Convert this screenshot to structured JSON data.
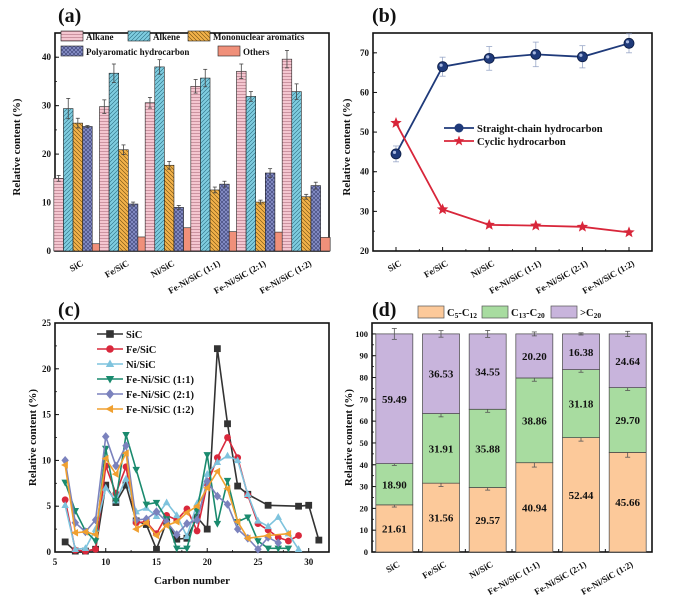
{
  "figure": {
    "panel_labels": [
      "(a)",
      "(b)",
      "(c)",
      "(d)"
    ]
  },
  "chart_data": [
    {
      "panel": "(a)",
      "type": "bar",
      "title": "",
      "xlabel": "",
      "ylabel": "Relative content (%)",
      "ylim": [
        0,
        45
      ],
      "yticks": [
        0,
        10,
        20,
        30,
        40
      ],
      "categories": [
        "SiC",
        "Fe/SiC",
        "Ni/SiC",
        "Fe-Ni/SiC (1:1)",
        "Fe-Ni/SiC (2:1)",
        "Fe-Ni/SiC (1:2)"
      ],
      "legend": "top",
      "series": [
        {
          "name": "Alkane",
          "color": "#f4c6d0",
          "pattern": "horizontal-lines",
          "values": [
            15.0,
            29.8,
            30.6,
            34.0,
            37.1,
            39.6
          ],
          "errors": [
            0.6,
            1.4,
            1.1,
            1.4,
            1.5,
            1.8
          ]
        },
        {
          "name": "Alkene",
          "color": "#7fcde0",
          "pattern": "diagonal-lines",
          "values": [
            29.4,
            36.7,
            38.0,
            35.7,
            31.9,
            32.9
          ],
          "errors": [
            2.1,
            1.9,
            1.5,
            1.8,
            1.0,
            1.6
          ]
        },
        {
          "name": "Mononuclear aromatics",
          "color": "#f3b24a",
          "pattern": "back-diagonal-lines",
          "values": [
            26.4,
            20.9,
            17.7,
            12.6,
            10.1,
            11.2
          ],
          "errors": [
            1.0,
            1.0,
            0.8,
            0.6,
            0.4,
            0.5
          ]
        },
        {
          "name": "Polyaromatic hydrocarbon",
          "color": "#8088c0",
          "pattern": "crosshatch",
          "values": [
            25.7,
            9.7,
            9.0,
            13.8,
            16.1,
            13.5
          ],
          "errors": [
            0.2,
            0.4,
            0.4,
            0.6,
            0.9,
            0.7
          ]
        },
        {
          "name": "Others",
          "color": "#f0907a",
          "pattern": "solid",
          "values": [
            1.5,
            2.9,
            4.8,
            4.0,
            3.9,
            2.8
          ],
          "errors": [
            0,
            0,
            0,
            0,
            0,
            0
          ]
        }
      ]
    },
    {
      "panel": "(b)",
      "type": "line",
      "title": "",
      "xlabel": "",
      "ylabel": "Relative content (%)",
      "ylim": [
        20,
        75
      ],
      "yticks": [
        20,
        30,
        40,
        50,
        60,
        70
      ],
      "categories": [
        "SiC",
        "Fe/SiC",
        "Ni/SiC",
        "Fe-Ni/SiC (1:1)",
        "Fe-Ni/SiC (2:1)",
        "Fe-Ni/SiC (1:2)"
      ],
      "legend": "center",
      "series": [
        {
          "name": "Straight-chain hydrocarbon",
          "color": "#1f3a7a",
          "marker": "circle",
          "values": [
            44.5,
            66.5,
            68.6,
            69.6,
            69.0,
            72.4
          ],
          "errors": [
            2.0,
            2.4,
            3.0,
            3.1,
            2.8,
            2.4
          ]
        },
        {
          "name": "Cyclic hydrocarbon",
          "color": "#d8263a",
          "marker": "star",
          "values": [
            52.3,
            30.5,
            26.6,
            26.4,
            26.1,
            24.7
          ],
          "errors": [
            0,
            0,
            0,
            0,
            0,
            0
          ]
        }
      ]
    },
    {
      "panel": "(c)",
      "type": "line",
      "title": "",
      "xlabel": "Carbon number",
      "ylabel": "Relative content (%)",
      "xlim": [
        5,
        32
      ],
      "ylim": [
        0,
        25
      ],
      "xticks": [
        5,
        10,
        15,
        20,
        25,
        30
      ],
      "yticks": [
        0,
        5,
        10,
        15,
        20,
        25
      ],
      "legend": "top-left",
      "series": [
        {
          "name": "SiC",
          "color": "#333333",
          "marker": "square",
          "x": [
            6,
            7,
            8,
            9,
            10,
            11,
            12,
            13,
            14,
            15,
            16,
            17,
            18,
            19,
            20,
            21,
            22,
            23,
            24,
            26,
            29,
            30,
            31
          ],
          "y": [
            1.1,
            0.1,
            0.1,
            0.3,
            7.3,
            5.4,
            7.3,
            3.4,
            3.0,
            0.3,
            3.3,
            1.4,
            1.5,
            3.8,
            2.5,
            22.2,
            14.0,
            7.2,
            6.3,
            5.1,
            5.0,
            5.1,
            1.3
          ]
        },
        {
          "name": "Fe/SiC",
          "color": "#d9283c",
          "marker": "circle",
          "x": [
            6,
            7,
            8,
            9,
            10,
            11,
            12,
            13,
            14,
            15,
            16,
            17,
            18,
            19,
            20,
            21,
            22,
            23,
            24,
            25,
            26,
            27,
            28,
            29
          ],
          "y": [
            5.7,
            0.2,
            0.1,
            0.3,
            9.4,
            6.4,
            9.3,
            3.2,
            3.3,
            2.0,
            4.0,
            3.5,
            4.7,
            2.3,
            7.4,
            10.3,
            12.5,
            10.3,
            6.2,
            3.1,
            2.4,
            1.6,
            1.2,
            1.8
          ]
        },
        {
          "name": "Ni/SiC",
          "color": "#7ec3dd",
          "marker": "triangle-up",
          "x": [
            6,
            7,
            8,
            9,
            10,
            11,
            12,
            13,
            14,
            15,
            16,
            17,
            18,
            19,
            20,
            21,
            22,
            23,
            24,
            25,
            26,
            27,
            28,
            29
          ],
          "y": [
            5.1,
            0.3,
            0.4,
            2.5,
            7.0,
            5.6,
            8.0,
            4.4,
            4.8,
            3.9,
            5.4,
            4.0,
            1.7,
            5.3,
            8.5,
            9.8,
            10.5,
            10.0,
            6.3,
            3.4,
            2.8,
            3.8,
            2.0,
            0.3
          ]
        },
        {
          "name": "Fe-Ni/SiC (1:1)",
          "color": "#1a8a6e",
          "marker": "triangle-down",
          "x": [
            6,
            7,
            8,
            9,
            10,
            11,
            12,
            13,
            14,
            15,
            16,
            17,
            18,
            19,
            20,
            21,
            22,
            23,
            24,
            25,
            26,
            27,
            28
          ],
          "y": [
            7.6,
            4.5,
            2.3,
            1.2,
            11.3,
            5.6,
            12.8,
            9.0,
            5.2,
            5.4,
            3.6,
            0.4,
            0.4,
            4.5,
            10.6,
            3.1,
            7.8,
            3.3,
            3.8,
            1.2,
            0.4,
            0.4,
            0.4
          ]
        },
        {
          "name": "Fe-Ni/SiC (2:1)",
          "color": "#7b82bd",
          "marker": "diamond",
          "x": [
            6,
            7,
            8,
            9,
            10,
            11,
            12,
            13,
            14,
            15,
            16,
            17,
            18,
            19,
            20,
            21,
            22,
            23,
            24,
            25,
            26,
            27
          ],
          "y": [
            10.0,
            3.2,
            2.2,
            3.5,
            12.6,
            9.4,
            11.6,
            3.5,
            3.6,
            4.4,
            3.3,
            1.9,
            3.1,
            3.5,
            7.7,
            6.1,
            5.2,
            2.5,
            1.5,
            0.3,
            1.6,
            1.0
          ]
        },
        {
          "name": "Fe-Ni/SiC (1:2)",
          "color": "#f0a030",
          "marker": "triangle-left",
          "x": [
            6,
            7,
            8,
            9,
            10,
            11,
            12,
            13,
            14,
            15,
            16,
            17,
            18,
            19,
            20,
            21,
            22,
            23,
            24,
            26,
            28
          ],
          "y": [
            9.5,
            2.1,
            2.2,
            1.9,
            10.2,
            8.5,
            10.8,
            2.5,
            3.2,
            1.8,
            2.9,
            3.3,
            4.3,
            5.0,
            7.0,
            8.8,
            6.9,
            3.3,
            1.5,
            1.8,
            2.0
          ]
        }
      ]
    },
    {
      "panel": "(d)",
      "type": "bar",
      "stacked": true,
      "title": "",
      "xlabel": "",
      "ylabel": "Relative content (%)",
      "ylim": [
        0,
        105
      ],
      "yticks": [
        0,
        10,
        20,
        30,
        40,
        50,
        60,
        70,
        80,
        90,
        100
      ],
      "categories": [
        "SiC",
        "Fe/SiC",
        "Ni/SiC",
        "Fe-Ni/SiC (1:1)",
        "Fe-Ni/SiC (2:1)",
        "Fe-Ni/SiC (1:2)"
      ],
      "legend": "top",
      "series": [
        {
          "name": "C5-C12",
          "label_main": "C",
          "label_sub1": "5",
          "label_mid": "-C",
          "label_sub2": "12",
          "color": "#fcc99a",
          "values": [
            21.61,
            31.56,
            29.57,
            40.94,
            52.44,
            45.66
          ],
          "errors": [
            1.0,
            1.5,
            1.2,
            2.0,
            1.6,
            2.2
          ]
        },
        {
          "name": "C13-C20",
          "label_main": "C",
          "label_sub1": "13",
          "label_mid": "-C",
          "label_sub2": "20",
          "color": "#a8dca0",
          "values": [
            18.9,
            31.91,
            35.88,
            38.86,
            31.18,
            29.7
          ],
          "errors": [
            0.8,
            1.5,
            1.4,
            1.5,
            1.2,
            1.3
          ]
        },
        {
          "name": ">C20",
          "label_main": ">C",
          "label_sub1": "",
          "label_mid": "",
          "label_sub2": "20",
          "color": "#c8b4dc",
          "values": [
            59.49,
            36.53,
            34.55,
            20.2,
            16.38,
            24.64
          ],
          "errors": [
            2.5,
            1.5,
            1.6,
            0.9,
            0.5,
            1.2
          ]
        }
      ],
      "value_labels": [
        [
          "21.61",
          "31.56",
          "29.57",
          "40.94",
          "52.44",
          "45.66"
        ],
        [
          "18.90",
          "31.91",
          "35.88",
          "38.86",
          "31.18",
          "29.70"
        ],
        [
          "59.49",
          "36.53",
          "34.55",
          "20.20",
          "16.38",
          "24.64"
        ]
      ]
    }
  ]
}
